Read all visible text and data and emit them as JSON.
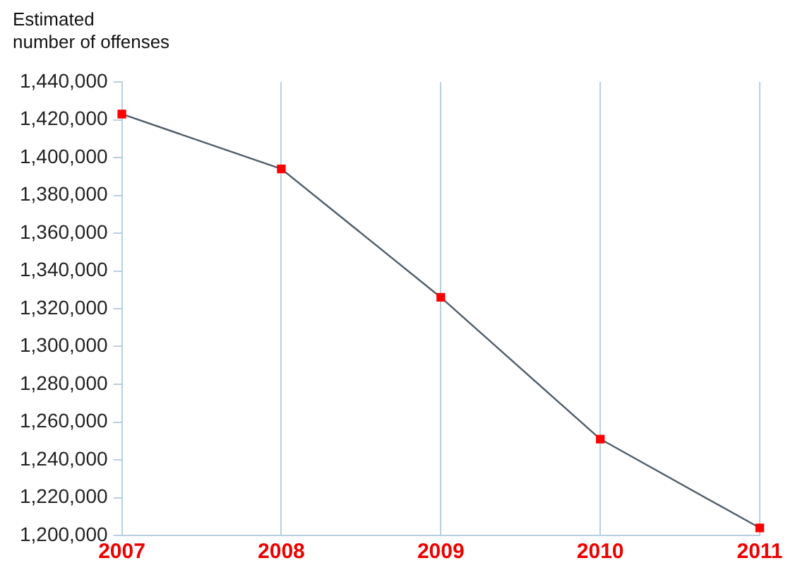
{
  "chart_data": {
    "type": "line",
    "ylabel": "Estimated\nnumber of offenses",
    "x": [
      2007,
      2008,
      2009,
      2010,
      2011
    ],
    "series": [
      {
        "color": "#4f5d6b",
        "values": [
          1423000,
          1394000,
          1326000,
          1251000,
          1204000
        ]
      }
    ],
    "xlim": [
      2007,
      2011
    ],
    "xticks": [
      2007,
      2008,
      2009,
      2010,
      2011
    ],
    "ylim": [
      1200000,
      1440000
    ],
    "yticks": [
      {
        "value": 1200000,
        "label": "1,200,000"
      },
      {
        "value": 1220000,
        "label": "1,220,000"
      },
      {
        "value": 1240000,
        "label": "1,240,000"
      },
      {
        "value": 1260000,
        "label": "1,260,000"
      },
      {
        "value": 1280000,
        "label": "1,280,000"
      },
      {
        "value": 1300000,
        "label": "1,300,000"
      },
      {
        "value": 1320000,
        "label": "1,320,000"
      },
      {
        "value": 1340000,
        "label": "1,340,000"
      },
      {
        "value": 1360000,
        "label": "1,360,000"
      },
      {
        "value": 1380000,
        "label": "1,380,000"
      },
      {
        "value": 1400000,
        "label": "1,400,000"
      },
      {
        "value": 1420000,
        "label": "1,420,000"
      },
      {
        "value": 1440000,
        "label": "1,440,000"
      }
    ],
    "grid": "x",
    "marker": "square",
    "legend": false
  }
}
